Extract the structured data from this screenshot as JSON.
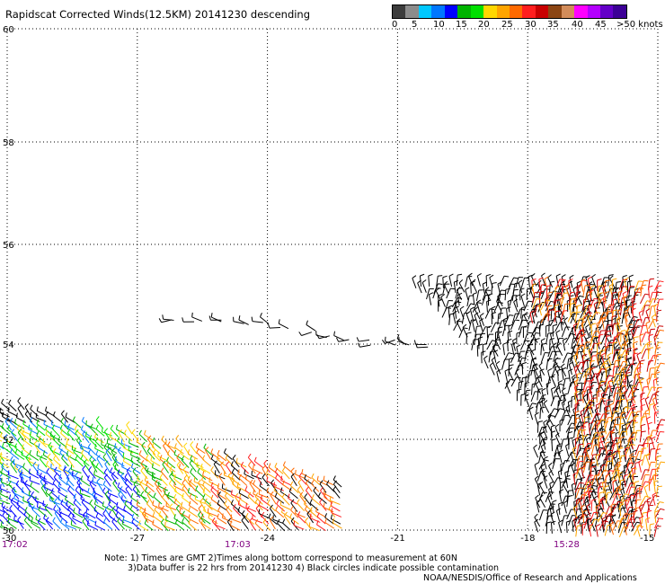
{
  "title": "Rapidscat Corrected Winds(12.5KM) 20141230 descending",
  "legend": {
    "colors": [
      "#3c3c3c",
      "#8c8c8c",
      "#00c8ff",
      "#0078ff",
      "#0000ff",
      "#00b400",
      "#00e000",
      "#ffd700",
      "#ffa500",
      "#ff6a00",
      "#ff1e1e",
      "#c80000",
      "#8b4513",
      "#d28c5a",
      "#ff00ff",
      "#b400ff",
      "#6400c8",
      "#3c0096"
    ],
    "labels": [
      "0",
      "5",
      "10",
      "15",
      "20",
      "25",
      "30",
      "35",
      "40",
      "45",
      ">50 knots"
    ]
  },
  "axes": {
    "lat_labels": [
      "60",
      "58",
      "56",
      "54",
      "52",
      "50"
    ],
    "lon_labels": [
      "-30",
      "-27",
      "-24",
      "-21",
      "-18",
      "-15"
    ],
    "time_labels": [
      "17:02",
      "17:03",
      "15:28"
    ]
  },
  "notes": {
    "line1": "Note: 1) Times are GMT 2)Times along bottom correspond to measurement at 60N",
    "line2": "3)Data buffer is 22 hrs from 20141230 4) Black circles indicate possible contamination"
  },
  "credit": "NOAA/NESDIS/Office of Research and Applications"
}
